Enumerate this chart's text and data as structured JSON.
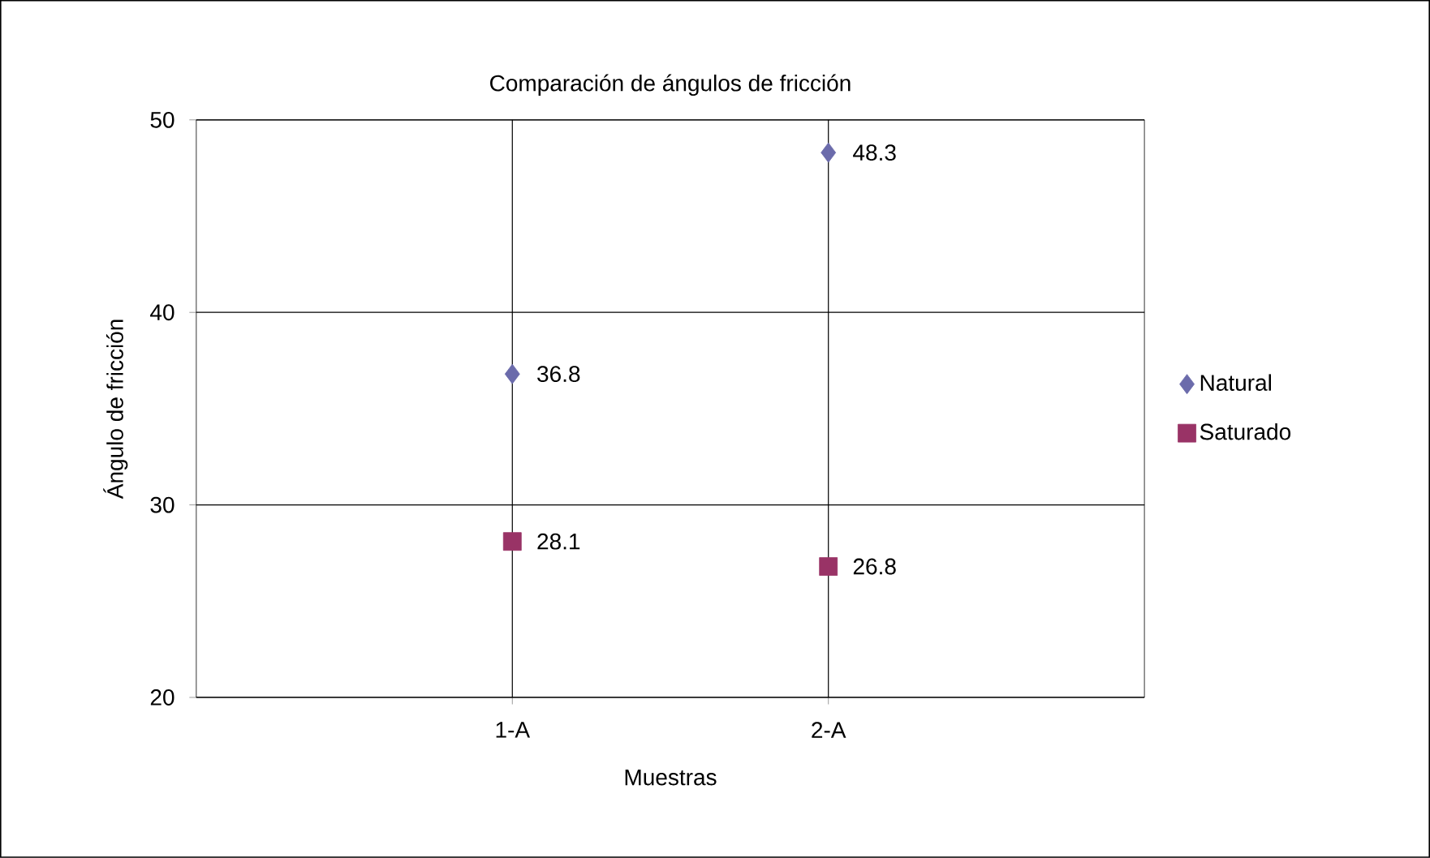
{
  "chart_data": {
    "type": "scatter",
    "title": "Comparación de ángulos de fricción",
    "xlabel": "Muestras",
    "ylabel": "Ángulo de fricción",
    "categories": [
      "1-A",
      "2-A"
    ],
    "series": [
      {
        "name": "Natural",
        "color": "#6b6bab",
        "marker": "diamond",
        "values": [
          36.8,
          48.3
        ]
      },
      {
        "name": "Saturado",
        "color": "#993366",
        "marker": "square",
        "values": [
          28.1,
          26.8
        ]
      }
    ],
    "ylim": [
      20,
      50
    ],
    "yticks": [
      20,
      30,
      40,
      50
    ],
    "grid": true,
    "legend": "right",
    "data_labels": true
  }
}
